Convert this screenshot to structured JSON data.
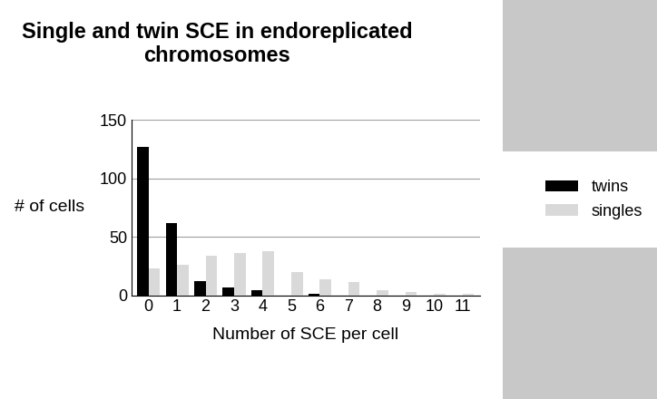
{
  "chart_data": {
    "type": "bar",
    "title": "Single and twin SCE in endoreplicated chromosomes",
    "x_label": "Number of SCE per cell",
    "y_label": "# of cells",
    "categories": [
      "0",
      "1",
      "2",
      "3",
      "4",
      "5",
      "6",
      "7",
      "8",
      "9",
      "10",
      "11"
    ],
    "series": [
      {
        "name": "twins",
        "color": "#000000",
        "values": [
          127,
          62,
          12,
          7,
          4,
          0,
          1,
          0,
          0,
          0,
          0,
          0
        ]
      },
      {
        "name": "singles",
        "color": "#d9d9d9",
        "values": [
          23,
          26,
          34,
          36,
          38,
          20,
          14,
          11,
          4,
          3,
          1,
          1
        ]
      }
    ],
    "ylim": [
      0,
      150
    ],
    "yticks": [
      0,
      50,
      100,
      150
    ],
    "grid": true,
    "legend": "center right"
  }
}
